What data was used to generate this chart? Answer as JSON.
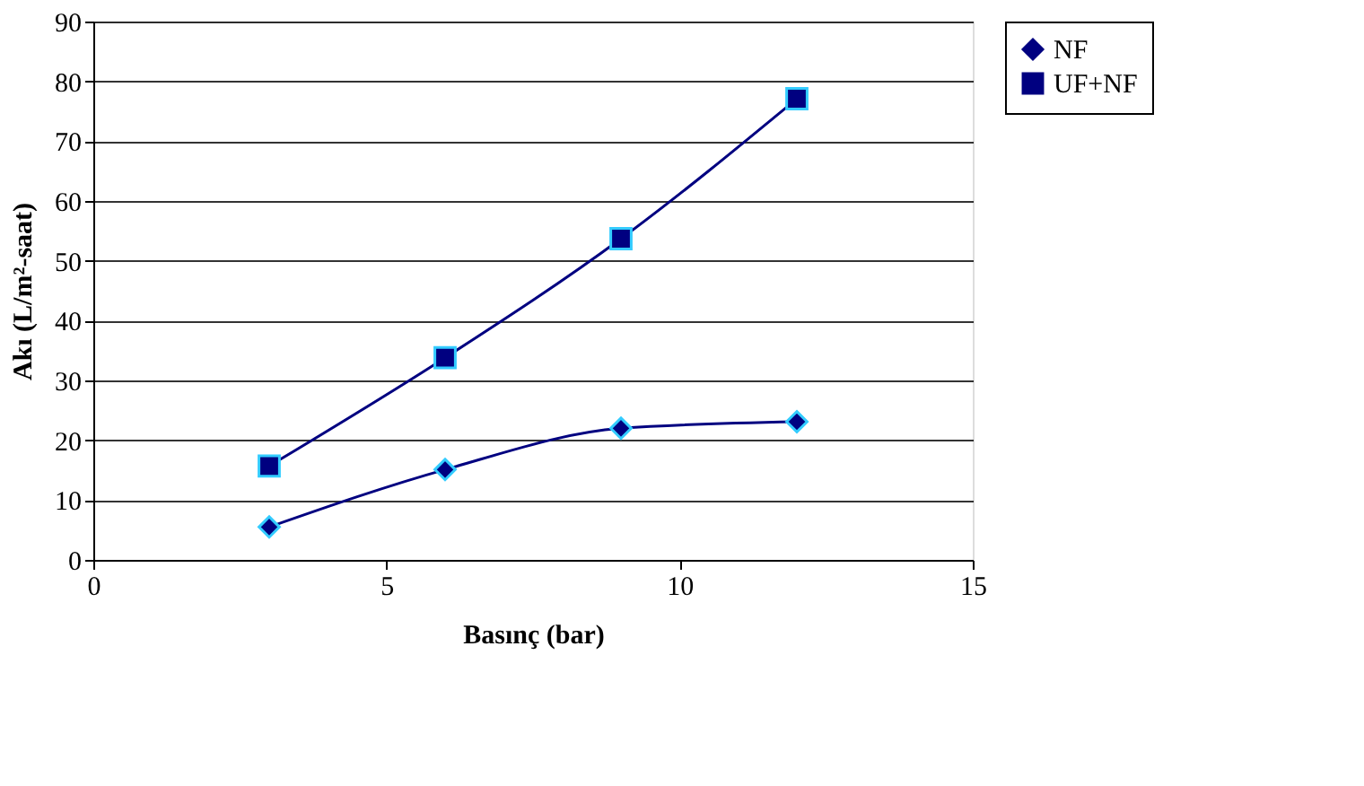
{
  "chart_data": {
    "type": "line",
    "xlabel": "Basınç (bar)",
    "ylabel": "Akı (L/m²-saat)",
    "x": [
      3,
      6,
      9,
      12
    ],
    "series": [
      {
        "name": "NF",
        "color": "#000080",
        "marker": "diamond",
        "values": [
          5.5,
          15.1,
          22.0,
          23.1
        ]
      },
      {
        "name": "UF+NF",
        "color": "#000080",
        "marker": "square",
        "values": [
          15.7,
          33.8,
          53.7,
          77.1
        ]
      }
    ],
    "xlim": [
      0,
      15
    ],
    "xticks": [
      0,
      5,
      10,
      15
    ],
    "ylim": [
      0,
      90
    ],
    "yticks": [
      0,
      10,
      20,
      30,
      40,
      50,
      60,
      70,
      80,
      90
    ],
    "grid": "y",
    "legend": "right",
    "line_style": "solid"
  }
}
